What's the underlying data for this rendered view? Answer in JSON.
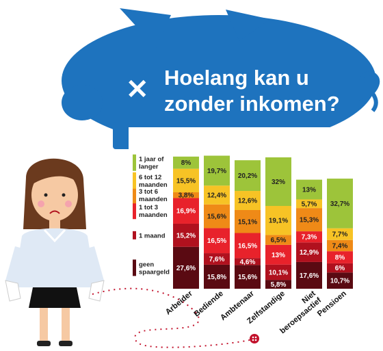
{
  "header": {
    "title_line1": "Hoelang kan u",
    "title_line2": "zonder inkomen?",
    "close_symbol": "✕"
  },
  "colors": {
    "piggy": "#1e73be",
    "geen_spaargeld": "#5a0a12",
    "1_maand": "#b0111e",
    "1_tot_3_maanden": "#e8222b",
    "3_tot_6_maanden": "#ef8a17",
    "6_tot_12_maanden": "#f7c325",
    "1_jaar_of_langer": "#9dc43a"
  },
  "chart_data": {
    "type": "bar",
    "stacked": true,
    "percent_stacked": true,
    "title": "Hoelang kan u zonder inkomen?",
    "categories": [
      "Arbeider",
      "Bediende",
      "Ambtenaar",
      "Zelfstandige",
      "Niet beroepsactief",
      "Pensioen"
    ],
    "category_labels": [
      [
        "Arbeider"
      ],
      [
        "Bediende"
      ],
      [
        "Ambtenaar"
      ],
      [
        "Zelfstandige"
      ],
      [
        "Niet",
        "beroepsactief"
      ],
      [
        "Pensioen"
      ]
    ],
    "series": [
      {
        "name": "geen spaargeld",
        "legend_lines": [
          "geen",
          "spaargeld"
        ],
        "color": "#5a0a12",
        "values": [
          27.6,
          15.8,
          15.6,
          5.8,
          17.6,
          10.7
        ],
        "labels": [
          "27,6%",
          "15,8%",
          "15,6%",
          "5,8%",
          "17,6%",
          "10,7%"
        ]
      },
      {
        "name": "1 maand",
        "legend_lines": [
          "1 maand"
        ],
        "color": "#b0111e",
        "values": [
          15.2,
          7.6,
          4.6,
          10.1,
          12.9,
          6
        ],
        "labels": [
          "15,2%",
          "7,6%",
          "4,6%",
          "10,1%",
          "12,9%",
          "6%"
        ]
      },
      {
        "name": "1 tot 3 maanden",
        "legend_lines": [
          "1 tot 3",
          "maanden"
        ],
        "color": "#e8222b",
        "values": [
          16.9,
          16.5,
          16.5,
          13,
          7.3,
          8
        ],
        "labels": [
          "16,9%",
          "16,5%",
          "16,5%",
          "13%",
          "7,3%",
          "8%"
        ]
      },
      {
        "name": "3 tot 6 maanden",
        "legend_lines": [
          "3 tot 6",
          "maanden"
        ],
        "color": "#ef8a17",
        "values": [
          3.8,
          15.6,
          15.1,
          6.5,
          15.3,
          7.4
        ],
        "labels": [
          "3,8%",
          "15,6%",
          "15,1%",
          "6,5%",
          "15,3%",
          "7,4%"
        ]
      },
      {
        "name": "6 tot 12 maanden",
        "legend_lines": [
          "6 tot 12",
          "maanden"
        ],
        "color": "#f7c325",
        "values": [
          15.5,
          12.4,
          12.6,
          19.1,
          5.7,
          7.7
        ],
        "labels": [
          "15,5%",
          "12,4%",
          "12,6%",
          "19,1%",
          "5,7%",
          "7,7%"
        ]
      },
      {
        "name": "1 jaar of langer",
        "legend_lines": [
          "1 jaar of",
          "langer"
        ],
        "color": "#9dc43a",
        "values": [
          8,
          19.7,
          20.2,
          32,
          13,
          32.7
        ],
        "labels": [
          "8%",
          "19,7%",
          "20,2%",
          "32%",
          "13%",
          "32,7%"
        ]
      }
    ],
    "ylim": [
      0,
      100
    ],
    "legend": "left"
  }
}
